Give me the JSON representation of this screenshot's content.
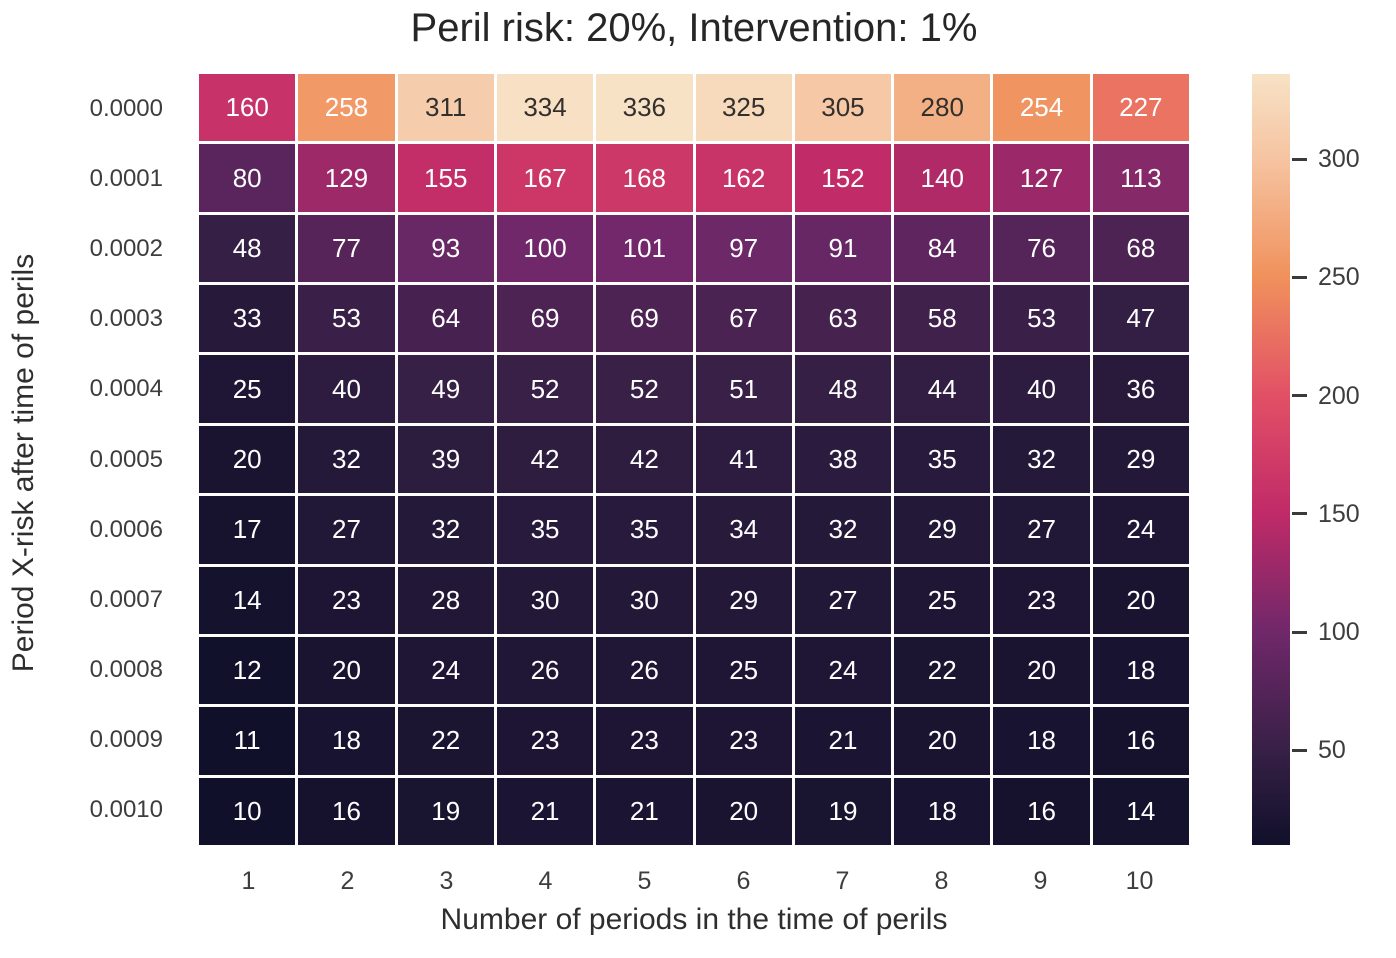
{
  "chart_data": {
    "type": "heatmap",
    "title": "Peril risk: 20%, Intervention: 1%",
    "xlabel": "Number of periods in the time of perils",
    "ylabel": "Period X-risk after time of perils",
    "x_ticks": [
      "1",
      "2",
      "3",
      "4",
      "5",
      "6",
      "7",
      "8",
      "9",
      "10"
    ],
    "y_ticks": [
      "0.0000",
      "0.0001",
      "0.0002",
      "0.0003",
      "0.0004",
      "0.0005",
      "0.0006",
      "0.0007",
      "0.0008",
      "0.0009",
      "0.0010"
    ],
    "values": [
      [
        160,
        258,
        311,
        334,
        336,
        325,
        305,
        280,
        254,
        227
      ],
      [
        80,
        129,
        155,
        167,
        168,
        162,
        152,
        140,
        127,
        113
      ],
      [
        48,
        77,
        93,
        100,
        101,
        97,
        91,
        84,
        76,
        68
      ],
      [
        33,
        53,
        64,
        69,
        69,
        67,
        63,
        58,
        53,
        47
      ],
      [
        25,
        40,
        49,
        52,
        52,
        51,
        48,
        44,
        40,
        36
      ],
      [
        20,
        32,
        39,
        42,
        42,
        41,
        38,
        35,
        32,
        29
      ],
      [
        17,
        27,
        32,
        35,
        35,
        34,
        32,
        29,
        27,
        24
      ],
      [
        14,
        23,
        28,
        30,
        30,
        29,
        27,
        25,
        23,
        20
      ],
      [
        12,
        20,
        24,
        26,
        26,
        25,
        24,
        22,
        20,
        18
      ],
      [
        11,
        18,
        22,
        23,
        23,
        23,
        21,
        20,
        18,
        16
      ],
      [
        10,
        16,
        19,
        21,
        21,
        20,
        19,
        18,
        16,
        14
      ]
    ],
    "vmin": 10,
    "vmax": 336,
    "grid": false,
    "legend_position": "right-colorbar",
    "colorbar_ticks": [
      300,
      250,
      200,
      150,
      100,
      50
    ],
    "colormap_name": "rocket",
    "colormap_stops": [
      {
        "value": 10,
        "color": "#10102a"
      },
      {
        "value": 50,
        "color": "#372046"
      },
      {
        "value": 100,
        "color": "#70286a"
      },
      {
        "value": 150,
        "color": "#c02a68"
      },
      {
        "value": 200,
        "color": "#e25066"
      },
      {
        "value": 250,
        "color": "#f0915c"
      },
      {
        "value": 300,
        "color": "#f6c4a1"
      },
      {
        "value": 336,
        "color": "#f7e2c6"
      }
    ],
    "annotation_text_colors": {
      "light": "#ffffff",
      "dark": "#322f2d"
    }
  }
}
